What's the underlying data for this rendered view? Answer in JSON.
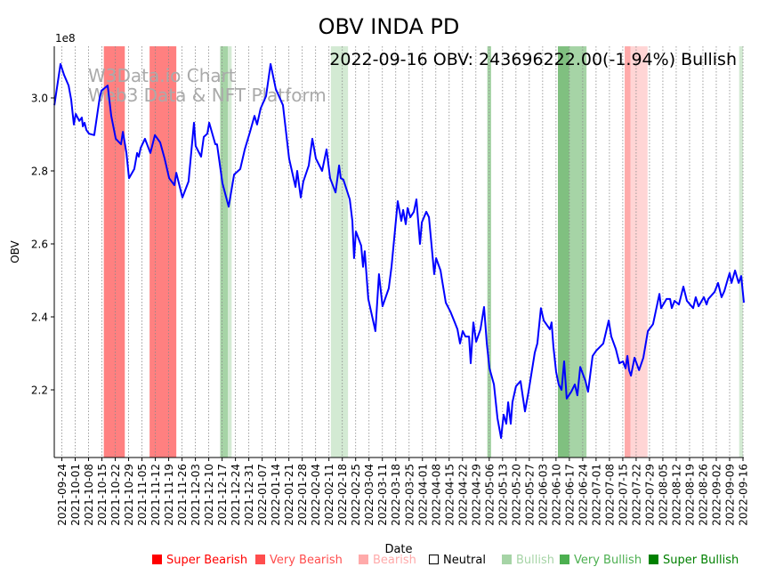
{
  "chart_data": {
    "type": "line",
    "title": "OBV INDA PD",
    "annotation": "2022-09-16 OBV: 243696222.00(-1.94%) Bullish",
    "watermark": [
      "W3Data.io Chart",
      "Web3 Data & NFT Platform"
    ],
    "xlabel": "Date",
    "ylabel": "OBV",
    "y_scale_label": "1e8",
    "ylim": [
      2.015,
      3.141
    ],
    "yticks": [
      2.2,
      2.4,
      2.6,
      2.8,
      3.0
    ],
    "ytick_labels": [
      "2.2",
      "2.4",
      "2.6",
      "2.8",
      "3.0"
    ],
    "x_origin": "2021-09-24",
    "xtick_labels": [
      "2021-09-24",
      "2021-10-01",
      "2021-10-08",
      "2021-10-15",
      "2021-10-22",
      "2021-10-29",
      "2021-11-05",
      "2021-11-12",
      "2021-11-19",
      "2021-11-26",
      "2021-12-03",
      "2021-12-10",
      "2021-12-17",
      "2021-12-24",
      "2021-12-31",
      "2022-01-07",
      "2022-01-14",
      "2022-01-21",
      "2022-01-28",
      "2022-02-04",
      "2022-02-11",
      "2022-02-18",
      "2022-02-25",
      "2022-03-04",
      "2022-03-11",
      "2022-03-18",
      "2022-03-25",
      "2022-04-01",
      "2022-04-08",
      "2022-04-15",
      "2022-04-22",
      "2022-04-29",
      "2022-05-06",
      "2022-05-13",
      "2022-05-20",
      "2022-05-27",
      "2022-06-03",
      "2022-06-10",
      "2022-06-17",
      "2022-06-24",
      "2022-07-01",
      "2022-07-08",
      "2022-07-15",
      "2022-07-22",
      "2022-07-29",
      "2022-08-05",
      "2022-08-12",
      "2022-08-19",
      "2022-08-26",
      "2022-09-02",
      "2022-09-09",
      "2022-09-16"
    ],
    "grid": "x-dotted",
    "series": [
      {
        "name": "OBV",
        "color": "#0000ff",
        "points_day_offset_value": [
          [
            -4.0,
            2.98
          ],
          [
            -0.7,
            3.093
          ],
          [
            1.2,
            3.063
          ],
          [
            3.6,
            3.034
          ],
          [
            5.0,
            2.995
          ],
          [
            6.4,
            2.927
          ],
          [
            7.4,
            2.956
          ],
          [
            9.3,
            2.937
          ],
          [
            10.7,
            2.946
          ],
          [
            11.2,
            2.922
          ],
          [
            12.1,
            2.932
          ],
          [
            13.1,
            2.912
          ],
          [
            14.5,
            2.902
          ],
          [
            17.3,
            2.898
          ],
          [
            20.2,
            3.0
          ],
          [
            21.2,
            3.02
          ],
          [
            24.5,
            3.034
          ],
          [
            26.4,
            2.951
          ],
          [
            28.8,
            2.888
          ],
          [
            31.6,
            2.873
          ],
          [
            32.6,
            2.907
          ],
          [
            34.5,
            2.849
          ],
          [
            35.9,
            2.78
          ],
          [
            38.7,
            2.805
          ],
          [
            40.2,
            2.849
          ],
          [
            41.1,
            2.839
          ],
          [
            42.1,
            2.863
          ],
          [
            44.4,
            2.888
          ],
          [
            47.3,
            2.849
          ],
          [
            49.7,
            2.898
          ],
          [
            52.5,
            2.878
          ],
          [
            54.9,
            2.834
          ],
          [
            57.3,
            2.78
          ],
          [
            60.1,
            2.761
          ],
          [
            61.1,
            2.795
          ],
          [
            64.4,
            2.727
          ],
          [
            67.7,
            2.771
          ],
          [
            70.6,
            2.932
          ],
          [
            71.5,
            2.868
          ],
          [
            74.4,
            2.839
          ],
          [
            75.8,
            2.893
          ],
          [
            77.7,
            2.902
          ],
          [
            78.7,
            2.932
          ],
          [
            82.0,
            2.873
          ],
          [
            82.9,
            2.873
          ],
          [
            85.8,
            2.766
          ],
          [
            89.1,
            2.702
          ],
          [
            92.0,
            2.79
          ],
          [
            95.3,
            2.805
          ],
          [
            97.7,
            2.859
          ],
          [
            100.5,
            2.907
          ],
          [
            102.9,
            2.951
          ],
          [
            104.3,
            2.927
          ],
          [
            106.2,
            2.971
          ],
          [
            109.1,
            3.005
          ],
          [
            111.5,
            3.093
          ],
          [
            114.3,
            3.024
          ],
          [
            118.1,
            2.98
          ],
          [
            121.4,
            2.834
          ],
          [
            124.8,
            2.756
          ],
          [
            125.7,
            2.8
          ],
          [
            127.6,
            2.727
          ],
          [
            129.0,
            2.771
          ],
          [
            131.9,
            2.815
          ],
          [
            133.8,
            2.888
          ],
          [
            135.7,
            2.834
          ],
          [
            139.0,
            2.8
          ],
          [
            141.4,
            2.859
          ],
          [
            143.3,
            2.78
          ],
          [
            146.2,
            2.741
          ],
          [
            148.1,
            2.815
          ],
          [
            149.0,
            2.78
          ],
          [
            150.4,
            2.776
          ],
          [
            153.8,
            2.722
          ],
          [
            155.2,
            2.663
          ],
          [
            156.1,
            2.561
          ],
          [
            157.1,
            2.634
          ],
          [
            159.9,
            2.595
          ],
          [
            160.9,
            2.537
          ],
          [
            161.8,
            2.58
          ],
          [
            163.7,
            2.449
          ],
          [
            167.5,
            2.361
          ],
          [
            169.4,
            2.517
          ],
          [
            171.3,
            2.429
          ],
          [
            174.6,
            2.478
          ],
          [
            176.1,
            2.537
          ],
          [
            179.4,
            2.717
          ],
          [
            181.3,
            2.663
          ],
          [
            182.3,
            2.693
          ],
          [
            183.7,
            2.654
          ],
          [
            184.7,
            2.698
          ],
          [
            186.1,
            2.673
          ],
          [
            188.0,
            2.688
          ],
          [
            189.4,
            2.722
          ],
          [
            191.3,
            2.6
          ],
          [
            192.3,
            2.659
          ],
          [
            194.7,
            2.688
          ],
          [
            196.1,
            2.673
          ],
          [
            198.9,
            2.517
          ],
          [
            199.9,
            2.561
          ],
          [
            202.3,
            2.527
          ],
          [
            203.2,
            2.498
          ],
          [
            205.1,
            2.439
          ],
          [
            207.5,
            2.415
          ],
          [
            209.9,
            2.385
          ],
          [
            211.3,
            2.366
          ],
          [
            212.7,
            2.327
          ],
          [
            214.1,
            2.361
          ],
          [
            215.6,
            2.346
          ],
          [
            217.5,
            2.346
          ],
          [
            218.4,
            2.273
          ],
          [
            219.8,
            2.385
          ],
          [
            221.3,
            2.332
          ],
          [
            223.6,
            2.366
          ],
          [
            225.5,
            2.427
          ],
          [
            227.0,
            2.327
          ],
          [
            228.4,
            2.259
          ],
          [
            230.8,
            2.215
          ],
          [
            232.7,
            2.122
          ],
          [
            234.6,
            2.068
          ],
          [
            236.0,
            2.132
          ],
          [
            237.4,
            2.107
          ],
          [
            238.4,
            2.166
          ],
          [
            239.8,
            2.107
          ],
          [
            240.7,
            2.166
          ],
          [
            242.6,
            2.21
          ],
          [
            245.0,
            2.224
          ],
          [
            247.4,
            2.141
          ],
          [
            249.3,
            2.195
          ],
          [
            252.6,
            2.302
          ],
          [
            254.0,
            2.327
          ],
          [
            255.9,
            2.424
          ],
          [
            257.4,
            2.39
          ],
          [
            260.7,
            2.366
          ],
          [
            261.6,
            2.385
          ],
          [
            262.6,
            2.317
          ],
          [
            264.0,
            2.249
          ],
          [
            265.4,
            2.215
          ],
          [
            266.9,
            2.2
          ],
          [
            268.3,
            2.278
          ],
          [
            269.7,
            2.176
          ],
          [
            272.1,
            2.195
          ],
          [
            274.0,
            2.215
          ],
          [
            275.4,
            2.185
          ],
          [
            276.9,
            2.263
          ],
          [
            279.7,
            2.224
          ],
          [
            281.1,
            2.195
          ],
          [
            283.5,
            2.293
          ],
          [
            285.4,
            2.307
          ],
          [
            289.2,
            2.327
          ],
          [
            292.1,
            2.39
          ],
          [
            293.5,
            2.346
          ],
          [
            295.9,
            2.312
          ],
          [
            297.8,
            2.273
          ],
          [
            299.7,
            2.278
          ],
          [
            301.1,
            2.259
          ],
          [
            302.1,
            2.293
          ],
          [
            303.0,
            2.254
          ],
          [
            304.0,
            2.239
          ],
          [
            305.9,
            2.288
          ],
          [
            308.3,
            2.254
          ],
          [
            310.6,
            2.288
          ],
          [
            313.0,
            2.361
          ],
          [
            315.8,
            2.38
          ],
          [
            319.2,
            2.463
          ],
          [
            320.1,
            2.424
          ],
          [
            323.0,
            2.449
          ],
          [
            324.9,
            2.449
          ],
          [
            325.8,
            2.424
          ],
          [
            327.3,
            2.444
          ],
          [
            329.6,
            2.434
          ],
          [
            332.0,
            2.483
          ],
          [
            333.9,
            2.444
          ],
          [
            337.2,
            2.424
          ],
          [
            338.6,
            2.454
          ],
          [
            340.1,
            2.429
          ],
          [
            342.9,
            2.454
          ],
          [
            344.4,
            2.434
          ],
          [
            345.3,
            2.449
          ],
          [
            348.6,
            2.468
          ],
          [
            350.5,
            2.493
          ],
          [
            352.4,
            2.454
          ],
          [
            353.9,
            2.471
          ],
          [
            355.8,
            2.505
          ],
          [
            356.7,
            2.52
          ],
          [
            357.7,
            2.493
          ],
          [
            359.6,
            2.527
          ],
          [
            361.5,
            2.493
          ],
          [
            362.9,
            2.512
          ],
          [
            364.3,
            2.439
          ]
        ]
      }
    ],
    "bands": [
      {
        "start": "2021-10-16",
        "end": "2021-10-27",
        "sentiment": "Very Bearish",
        "color": "#ff8080"
      },
      {
        "start": "2021-11-09",
        "end": "2021-11-23",
        "sentiment": "Very Bearish",
        "color": "#ff8080"
      },
      {
        "start": "2021-12-16",
        "end": "2021-12-20",
        "sentiment": "Very Bullish",
        "color": "#a6d4a6"
      },
      {
        "start": "2021-12-20",
        "end": "2021-12-22",
        "sentiment": "Bullish",
        "color": "#d3ead3"
      },
      {
        "start": "2022-02-12",
        "end": "2022-02-21",
        "sentiment": "Bullish",
        "color": "#d3ead3"
      },
      {
        "start": "2022-05-05",
        "end": "2022-05-07",
        "sentiment": "Very Bullish",
        "color": "#a6d4a6"
      },
      {
        "start": "2022-06-11",
        "end": "2022-06-17",
        "sentiment": "Super Bullish",
        "color": "#80c080"
      },
      {
        "start": "2022-06-17",
        "end": "2022-06-26",
        "sentiment": "Very Bullish",
        "color": "#a6d4a6"
      },
      {
        "start": "2022-07-16",
        "end": "2022-07-19",
        "sentiment": "Bearish",
        "color": "#ffaaaa"
      },
      {
        "start": "2022-07-19",
        "end": "2022-07-28",
        "sentiment": "Bearish",
        "color": "#ffd5d5"
      },
      {
        "start": "2022-09-14",
        "end": "2022-09-16",
        "sentiment": "Bullish",
        "color": "#d3ead3"
      }
    ],
    "legend": {
      "placement": "bottom",
      "items": [
        {
          "label": "Super Bearish",
          "color": "#ff0000",
          "hollow": false
        },
        {
          "label": "Very Bearish",
          "color": "#ff4d4d",
          "hollow": false
        },
        {
          "label": "Bearish",
          "color": "#ffaaaa",
          "hollow": false
        },
        {
          "label": "Neutral",
          "color": "#000000",
          "hollow": true
        },
        {
          "label": "Bullish",
          "color": "#a6d4a6",
          "hollow": false
        },
        {
          "label": "Very Bullish",
          "color": "#4caf50",
          "hollow": false
        },
        {
          "label": "Super Bullish",
          "color": "#008000",
          "hollow": false
        }
      ]
    }
  }
}
